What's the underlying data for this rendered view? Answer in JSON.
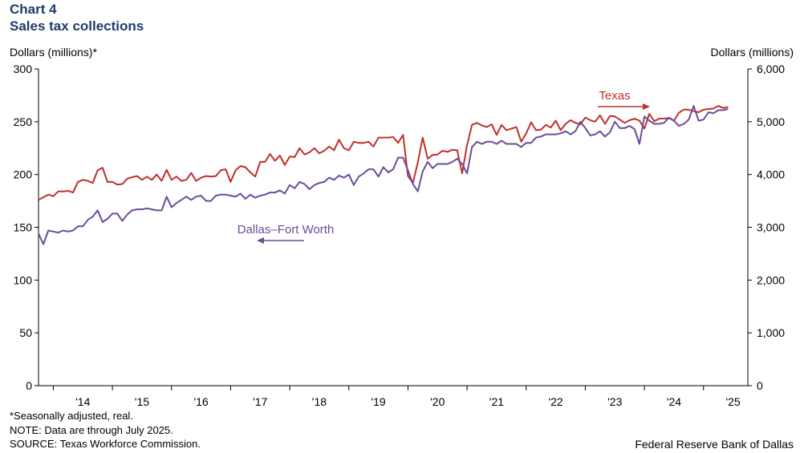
{
  "title_line1": "Chart 4",
  "title_line2": "Sales tax collections",
  "notes": {
    "line1": "*Seasonally adjusted, real.",
    "line2": "NOTE: Data are through July 2025.",
    "line3": "SOURCE: Texas Workforce Commission."
  },
  "credit": "Federal Reserve Bank of Dallas",
  "colors": {
    "texas": "#c0302b",
    "dfw": "#6b4c9a",
    "axis": "#000000"
  },
  "chart_data": {
    "type": "line",
    "ylabel_left": "Dollars (millions)*",
    "ylabel_right": "Dollars (millions)",
    "ylim_left": [
      0,
      300
    ],
    "ylim_right": [
      0,
      6000
    ],
    "yticks_left": [
      "0",
      "50",
      "100",
      "150",
      "200",
      "250",
      "300"
    ],
    "yticks_right": [
      "0",
      "1,000",
      "2,000",
      "3,000",
      "4,000",
      "5,000",
      "6,000"
    ],
    "x_start": 2013.75,
    "x_end": 2025.75,
    "xticks": [
      "'14",
      "'15",
      "'16",
      "'17",
      "'18",
      "'19",
      "'20",
      "'21",
      "'22",
      "'23",
      "'24",
      "'25"
    ],
    "grid": false,
    "series": [
      {
        "name": "Texas",
        "axis": "right",
        "annotation_arrow": "right",
        "values": [
          3520,
          3570,
          3620,
          3590,
          3680,
          3680,
          3690,
          3660,
          3860,
          3900,
          3880,
          3840,
          4080,
          4130,
          3860,
          3860,
          3810,
          3820,
          3920,
          3950,
          3970,
          3900,
          3960,
          3900,
          4000,
          3880,
          4090,
          3900,
          3960,
          3880,
          3900,
          4030,
          3880,
          3940,
          3970,
          3960,
          3970,
          4080,
          4100,
          3860,
          4080,
          4160,
          4140,
          4040,
          3960,
          4240,
          4240,
          4390,
          4260,
          4360,
          4180,
          4340,
          4330,
          4500,
          4380,
          4420,
          4500,
          4400,
          4450,
          4530,
          4460,
          4660,
          4500,
          4460,
          4620,
          4600,
          4600,
          4620,
          4530,
          4700,
          4700,
          4700,
          4710,
          4600,
          4750,
          3970,
          3840,
          4230,
          4700,
          4300,
          4370,
          4380,
          4450,
          4430,
          4470,
          4460,
          4020,
          4560,
          4940,
          4980,
          4930,
          4900,
          4950,
          4750,
          4940,
          4840,
          4870,
          4900,
          4620,
          4780,
          4990,
          4840,
          4850,
          4940,
          4890,
          5020,
          4840,
          4960,
          5030,
          4980,
          4950,
          5080,
          5030,
          5000,
          5120,
          4960,
          5110,
          5100,
          5040,
          4980,
          5030,
          5060,
          5020,
          4870,
          5150,
          5010,
          5060,
          5060,
          5070,
          5020,
          5170,
          5230,
          5230,
          5200,
          5180,
          5230,
          5240,
          5250,
          5300,
          5260,
          5280
        ]
      },
      {
        "name": "Dallas–Fort Worth",
        "axis": "left",
        "annotation_arrow": "left",
        "values": [
          144,
          134,
          147,
          146,
          145,
          147,
          146,
          147,
          151,
          151,
          157,
          160,
          166,
          155,
          158,
          163,
          163,
          156,
          162,
          166,
          167,
          167,
          168,
          167,
          166,
          166,
          179,
          169,
          173,
          176,
          179,
          176,
          179,
          180,
          175,
          175,
          180,
          181,
          181,
          180,
          179,
          182,
          177,
          181,
          178,
          180,
          181,
          183,
          183,
          185,
          182,
          190,
          187,
          193,
          191,
          186,
          190,
          192,
          193,
          197,
          195,
          199,
          197,
          200,
          190,
          198,
          201,
          205,
          205,
          198,
          207,
          202,
          205,
          216,
          216,
          204,
          191,
          184,
          203,
          212,
          206,
          210,
          210,
          210,
          212,
          215,
          210,
          201,
          226,
          231,
          229,
          231,
          231,
          229,
          232,
          229,
          229,
          229,
          226,
          230,
          230,
          235,
          236,
          238,
          238,
          238,
          239,
          241,
          238,
          241,
          250,
          244,
          237,
          238,
          241,
          236,
          240,
          250,
          244,
          244,
          246,
          243,
          229,
          255,
          251,
          248,
          248,
          249,
          254,
          251,
          246,
          248,
          252,
          265,
          251,
          252,
          259,
          258,
          261,
          261,
          262
        ]
      }
    ]
  }
}
